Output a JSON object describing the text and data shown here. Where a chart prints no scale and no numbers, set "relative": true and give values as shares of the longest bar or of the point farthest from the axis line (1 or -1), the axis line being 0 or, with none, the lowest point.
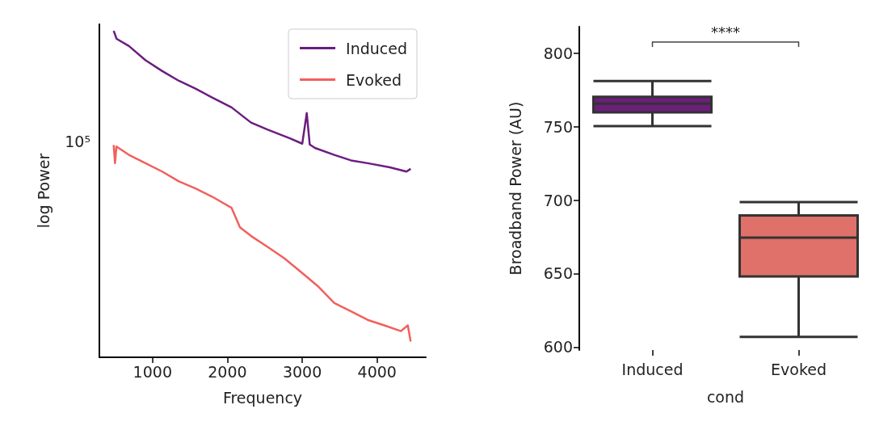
{
  "chart_data": [
    {
      "type": "line",
      "xlabel": "Frequency",
      "ylabel": "log Power",
      "relative": true,
      "xlim": [
        290,
        4650
      ],
      "xticks": [
        1000,
        2000,
        3000,
        4000
      ],
      "legend": "top right",
      "line_style": "solid",
      "marker": "none",
      "annotations": [
        "10⁵"
      ],
      "series": [
        {
          "name": "Induced",
          "color": "#6b1d80",
          "x": [
            481,
            520,
            684,
            906,
            1129,
            1352,
            1574,
            1796,
            2056,
            2315,
            2538,
            2835,
            3000,
            3060,
            3100,
            3169,
            3428,
            3651,
            3873,
            4170,
            4392,
            4448
          ],
          "values": [
            1,
            0.9755,
            0.9534,
            0.9099,
            0.8768,
            0.8468,
            0.8231,
            0.7955,
            0.7653,
            0.7189,
            0.6971,
            0.6706,
            0.6542,
            0.748,
            0.6516,
            0.6413,
            0.62,
            0.603,
            0.5945,
            0.5817,
            0.5688,
            0.5772
          ]
        },
        {
          "name": "Evoked",
          "color": "#f1605d",
          "x": [
            481,
            499,
            518,
            684,
            906,
            1129,
            1352,
            1574,
            1796,
            2056,
            2168,
            2315,
            2538,
            2760,
            2983,
            3205,
            3428,
            3651,
            3873,
            4096,
            4318,
            4410,
            4448
          ],
          "values": [
            0.65,
            0.5945,
            0.6457,
            0.62,
            0.5945,
            0.5688,
            0.5388,
            0.5171,
            0.492,
            0.4576,
            0.3977,
            0.3717,
            0.3381,
            0.3034,
            0.261,
            0.2185,
            0.1663,
            0.1407,
            0.1146,
            0.0979,
            0.0802,
            0.0979,
            0.0483
          ]
        }
      ]
    },
    {
      "type": "box",
      "categories": [
        "Induced",
        "Evoked"
      ],
      "xlabel": "cond",
      "ylabel": "Broadband Power (AU)",
      "ylim": [
        598,
        818
      ],
      "yticks": [
        600,
        650,
        700,
        750,
        800
      ],
      "colors": [
        "#6b1f7a",
        "#e0706a"
      ],
      "annotations": [
        "****"
      ],
      "boxes": [
        {
          "low": 750.4,
          "q1": 759.7,
          "median": 765.6,
          "q3": 770.3,
          "high": 781
        },
        {
          "low": 607,
          "q1": 648,
          "median": 674.4,
          "q3": 689.6,
          "high": 698.7
        }
      ]
    }
  ]
}
